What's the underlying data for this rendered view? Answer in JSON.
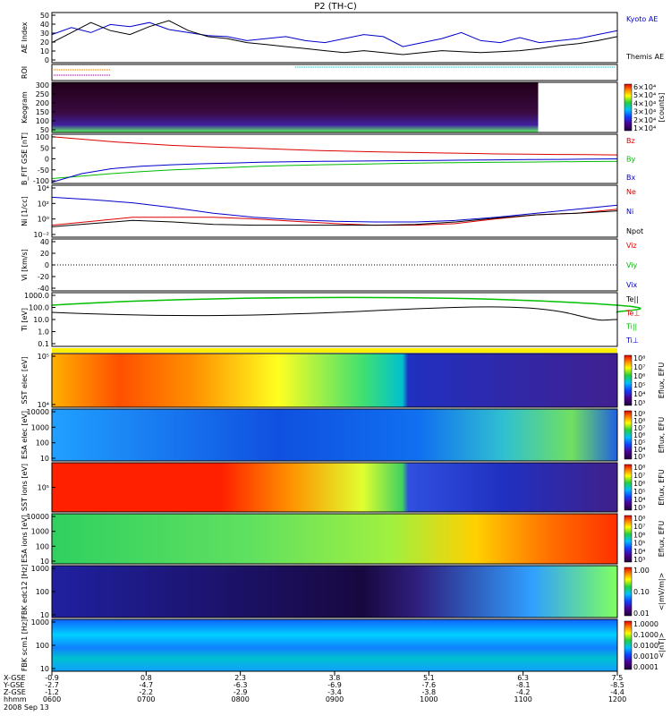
{
  "chart_data": {
    "type": "line",
    "title": "P2 (TH-C)",
    "date_label": "2008 Sep 13",
    "x_axis": {
      "row_labels": [
        "X-GSE",
        "Y-GSE",
        "Z-GSE",
        "hhmm"
      ],
      "ticks": [
        {
          "x": "-0.9",
          "y": "-2.7",
          "z": "-1.2",
          "t": "0600"
        },
        {
          "x": "0.8",
          "y": "-4.7",
          "z": "-2.2",
          "t": "0700"
        },
        {
          "x": "2.3",
          "y": "-6.3",
          "z": "-2.9",
          "t": "0800"
        },
        {
          "x": "3.8",
          "y": "-6.9",
          "z": "-3.4",
          "t": "0900"
        },
        {
          "x": "5.1",
          "y": "-7.6",
          "z": "-3.8",
          "t": "1000"
        },
        {
          "x": "6.3",
          "y": "-8.1",
          "z": "-4.2",
          "t": "1100"
        },
        {
          "x": "7.5",
          "y": "-8.5",
          "z": "-4.4",
          "t": "1200"
        }
      ]
    },
    "panels": [
      {
        "id": "ae",
        "ylabel": "AE Index",
        "yticks": [
          "50",
          "40",
          "30",
          "20",
          "10",
          "0"
        ],
        "series": [
          {
            "name": "Kyoto AE",
            "color": "#0000cc",
            "values": [
              28,
              35,
              30,
              38,
              36,
              40,
              33,
              30,
              27,
              26,
              22,
              24,
              26,
              22,
              20,
              24,
              28,
              26,
              16,
              20,
              24,
              30,
              22,
              20,
              25,
              20,
              22,
              24,
              28,
              32
            ]
          },
          {
            "name": "Themis AE",
            "color": "#000000",
            "values": [
              20,
              30,
              40,
              32,
              28,
              36,
              42,
              32,
              26,
              24,
              20,
              18,
              16,
              14,
              12,
              10,
              12,
              10,
              8,
              10,
              12,
              11,
              10,
              11,
              12,
              14,
              17,
              19,
              22,
              26
            ]
          }
        ]
      },
      {
        "id": "roi",
        "ylabel": "ROI"
      },
      {
        "id": "keogram",
        "ylabel": "Keogram",
        "yticks": [
          "300",
          "250",
          "200",
          "150",
          "100",
          "50"
        ],
        "colorbar": {
          "label": "[counts]",
          "ticks": [
            "6×10⁴",
            "5×10⁴",
            "4×10⁴",
            "3×10⁴",
            "2×10⁴",
            "1×10⁴"
          ]
        }
      },
      {
        "id": "bfit",
        "ylabel": "B_FIT GSE [nT]",
        "yticks": [
          "100",
          "50",
          "0",
          "-50",
          "-100"
        ],
        "series": [
          {
            "name": "Bz",
            "color": "#dd0000",
            "values": [
              90,
              80,
              70,
              62,
              55,
              50,
              46,
              42,
              38,
              34,
              31,
              28,
              26,
              24,
              22,
              20,
              19,
              18,
              17,
              16
            ]
          },
          {
            "name": "By",
            "color": "#00bb00",
            "values": [
              -80,
              -70,
              -60,
              -52,
              -45,
              -40,
              -35,
              -30,
              -27,
              -24,
              -22,
              -20,
              -18,
              -16,
              -15,
              -14,
              -13,
              -12,
              -11,
              -10
            ]
          },
          {
            "name": "Bx",
            "color": "#0000cc",
            "values": [
              -95,
              -60,
              -40,
              -30,
              -24,
              -20,
              -17,
              -14,
              -12,
              -10,
              -9,
              -8,
              -7,
              -6,
              -5,
              -4,
              -3,
              -2,
              -1,
              0
            ]
          }
        ]
      },
      {
        "id": "ni",
        "ylabel": "Ni [1/cc]",
        "yticks": [
          "10⁴",
          "10²",
          "10⁰",
          "10⁻²"
        ],
        "series": [
          {
            "name": "Ne",
            "color": "#dd0000",
            "values": [
              -1,
              -0.5,
              0,
              0,
              0,
              -0.2,
              -0.5,
              -0.8,
              -1,
              -1,
              -0.8,
              -0.2,
              0.3,
              0.5,
              1
            ]
          },
          {
            "name": "Ni",
            "color": "#0000cc",
            "values": [
              2.5,
              2.2,
              1.8,
              1.2,
              0.5,
              0,
              -0.3,
              -0.5,
              -0.6,
              -0.6,
              -0.4,
              0,
              0.5,
              1,
              1.5
            ]
          },
          {
            "name": "Npot",
            "color": "#000000",
            "values": [
              -1.2,
              -0.8,
              -0.4,
              -0.6,
              -0.9,
              -1,
              -1,
              -1,
              -1,
              -0.9,
              -0.6,
              -0.1,
              0.3,
              0.5,
              0.8
            ]
          }
        ]
      },
      {
        "id": "vi",
        "ylabel": "Vi [km/s]",
        "yticks": [
          "40",
          "20",
          "0",
          "-20",
          "-40"
        ],
        "series": [
          {
            "name": "Viz",
            "color": "#dd0000"
          },
          {
            "name": "Viy",
            "color": "#00bb00"
          },
          {
            "name": "Vix",
            "color": "#0000cc"
          }
        ]
      },
      {
        "id": "ti",
        "ylabel": "Ti [eV]",
        "yticks": [
          "1000.0",
          "100.0",
          "10.0",
          "1.0",
          "0.1"
        ],
        "series": [
          {
            "name": "Te||",
            "color": "#000000"
          },
          {
            "name": "Te⊥",
            "color": "#dd0000"
          },
          {
            "name": "Ti||",
            "color": "#00bb00"
          },
          {
            "name": "Ti⊥",
            "color": "#0000cc"
          }
        ]
      },
      {
        "id": "sst_e",
        "ylabel": "SST elec [eV]",
        "yticks": [
          "10⁵",
          "10⁴"
        ],
        "colorbar": {
          "label": "Eflux, EFU",
          "ticks": [
            "10⁸",
            "10⁷",
            "10⁶",
            "10⁵",
            "10⁴",
            "10³"
          ]
        }
      },
      {
        "id": "esa_e",
        "ylabel": "ESA elec [eV]",
        "yticks": [
          "10000",
          "1000",
          "100",
          "10"
        ],
        "colorbar": {
          "label": "Eflux, EFU",
          "ticks": [
            "10⁹",
            "10⁸",
            "10⁷",
            "10⁶",
            "10⁵",
            "10⁴",
            "10³"
          ]
        }
      },
      {
        "id": "sst_i",
        "ylabel": "SST ions [eV]",
        "yticks": [
          "10⁵"
        ],
        "colorbar": {
          "label": "Eflux, EFU",
          "ticks": [
            "10⁸",
            "10⁷",
            "10⁶",
            "10⁵",
            "10⁴",
            "10³"
          ]
        }
      },
      {
        "id": "esa_i",
        "ylabel": "ESA ions [eV]",
        "yticks": [
          "10000",
          "1000",
          "100",
          "10"
        ],
        "colorbar": {
          "label": "Eflux, EFU",
          "ticks": [
            "10⁸",
            "10⁷",
            "10⁶",
            "10⁵",
            "10⁴",
            "10³"
          ]
        }
      },
      {
        "id": "fbk_b",
        "ylabel": "FBK edc12 [Hz]",
        "yticks": [
          "1000",
          "100",
          "10"
        ],
        "colorbar": {
          "label": "<|mV/m|>",
          "ticks": [
            "1.00",
            "0.10",
            "0.01"
          ]
        }
      },
      {
        "id": "fbk_s",
        "ylabel": "FBK scm1 [Hz]",
        "yticks": [
          "1000",
          "100",
          "10"
        ],
        "colorbar": {
          "label": "<|nT|>",
          "ticks": [
            "1.0000",
            "0.1000",
            "0.0100",
            "0.0010",
            "0.0001"
          ]
        }
      }
    ],
    "legend_placement": "right",
    "grid": false
  }
}
